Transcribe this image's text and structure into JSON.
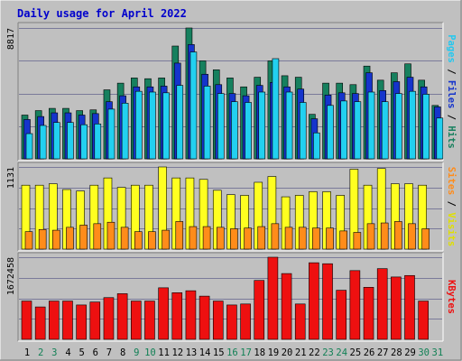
{
  "chart_data": {
    "type": "bar",
    "title": "Daily usage for April 2022",
    "categories": [
      "1",
      "2",
      "3",
      "4",
      "5",
      "6",
      "7",
      "8",
      "9",
      "10",
      "11",
      "12",
      "13",
      "14",
      "15",
      "16",
      "17",
      "18",
      "19",
      "20",
      "21",
      "22",
      "23",
      "24",
      "25",
      "26",
      "27",
      "28",
      "29",
      "30",
      "31"
    ],
    "weekend_days": [
      "2",
      "3",
      "9",
      "10",
      "16",
      "17",
      "23",
      "24",
      "30",
      "31"
    ],
    "colors": {
      "background": "#c0c0c0",
      "title": "#0000cc",
      "hits": "#16805e",
      "files": "#1534cc",
      "pages": "#22d0f0",
      "visits": "#ffff20",
      "sites": "#ff8c1a",
      "kbytes": "#ee1010",
      "weekday_label": "#000000",
      "weekend_label": "#118055"
    },
    "panels": [
      {
        "id": "top",
        "max_label": "8817",
        "ymax": 8817,
        "label_parts": [
          {
            "text": "Pages",
            "color": "#22c8f0"
          },
          {
            "text": " / ",
            "color": "#000000"
          },
          {
            "text": "Files",
            "color": "#1534cc"
          },
          {
            "text": " / ",
            "color": "#000000"
          },
          {
            "text": "Hits",
            "color": "#16805e"
          }
        ],
        "series": [
          {
            "name": "Hits",
            "values": [
              2950,
              3250,
              3400,
              3400,
              3250,
              3300,
              4650,
              5100,
              5450,
              5400,
              5450,
              7600,
              8817,
              6600,
              6000,
              5450,
              4850,
              5500,
              6600,
              5600,
              5500,
              3000,
              5100,
              5100,
              5000,
              6250,
              5300,
              5800,
              6400,
              5300,
              3600
            ]
          },
          {
            "name": "Files",
            "values": [
              2650,
              2850,
              3100,
              3100,
              2950,
              3050,
              3850,
              4250,
              4850,
              4850,
              4900,
              6450,
              7700,
              5700,
              5000,
              4400,
              4250,
              4950,
              5150,
              4850,
              4700,
              2700,
              4300,
              4450,
              4400,
              5800,
              4600,
              5200,
              5500,
              4850,
              3500
            ]
          },
          {
            "name": "Pages",
            "values": [
              1700,
              2250,
              2450,
              2450,
              2300,
              2350,
              3350,
              3750,
              4550,
              4500,
              4450,
              4950,
              7200,
              4900,
              4400,
              3850,
              3800,
              4500,
              6750,
              4500,
              3800,
              1750,
              3600,
              3900,
              3850,
              4500,
              3850,
              4400,
              4550,
              4350,
              2750
            ]
          }
        ]
      },
      {
        "id": "middle",
        "max_label": "1131",
        "ymax": 1131,
        "label_parts": [
          {
            "text": "Sites",
            "color": "#ff8c1a"
          },
          {
            "text": " / ",
            "color": "#000000"
          },
          {
            "text": "Visits",
            "color": "#e0e000"
          }
        ],
        "series": [
          {
            "name": "Visits",
            "values": [
              880,
              880,
              900,
              820,
              800,
              880,
              980,
              850,
              880,
              880,
              1131,
              980,
              980,
              960,
              810,
              750,
              740,
              920,
              1000,
              720,
              740,
              790,
              790,
              740,
              1100,
              880,
              1110,
              900,
              900,
              880,
              null
            ]
          },
          {
            "name": "Sites",
            "values": [
              240,
              270,
              260,
              300,
              330,
              350,
              370,
              300,
              240,
              240,
              260,
              380,
              310,
              310,
              300,
              280,
              290,
              310,
              350,
              300,
              300,
              290,
              290,
              250,
              230,
              350,
              360,
              380,
              350,
              280,
              null
            ]
          }
        ]
      },
      {
        "id": "bottom",
        "max_label": "1672458",
        "ymax": 1672458,
        "label_parts": [
          {
            "text": "KBytes",
            "color": "#ee1010"
          }
        ],
        "series": [
          {
            "name": "KBytes",
            "values": [
              780000,
              660000,
              780000,
              780000,
              700000,
              760000,
              850000,
              930000,
              780000,
              780000,
              1050000,
              950000,
              990000,
              880000,
              780000,
              700000,
              720000,
              1200000,
              1672458,
              1340000,
              720000,
              1560000,
              1540000,
              1000000,
              1400000,
              1060000,
              1440000,
              1270000,
              1300000,
              780000,
              null
            ]
          }
        ]
      }
    ]
  }
}
